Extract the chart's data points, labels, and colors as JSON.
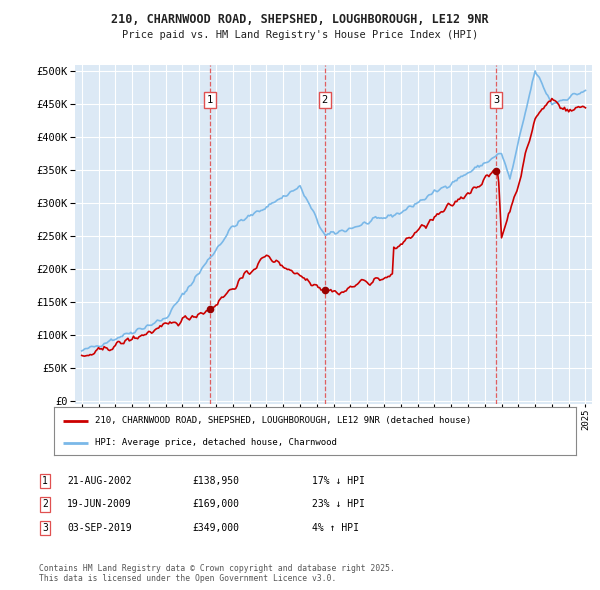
{
  "title1": "210, CHARNWOOD ROAD, SHEPSHED, LOUGHBOROUGH, LE12 9NR",
  "title2": "Price paid vs. HM Land Registry's House Price Index (HPI)",
  "ytick_values": [
    0,
    50000,
    100000,
    150000,
    200000,
    250000,
    300000,
    350000,
    400000,
    450000,
    500000
  ],
  "xlim": [
    1994.6,
    2025.4
  ],
  "ylim": [
    -5000,
    510000
  ],
  "background_color": "#dce9f5",
  "grid_color": "#ffffff",
  "sale_points": [
    {
      "year": 2002.638,
      "price": 138950,
      "label": "1"
    },
    {
      "year": 2009.466,
      "price": 169000,
      "label": "2"
    },
    {
      "year": 2019.672,
      "price": 349000,
      "label": "3"
    }
  ],
  "vline_color": "#e05050",
  "sale_marker_color": "#990000",
  "hpi_line_color": "#7ab8e8",
  "price_line_color": "#cc0000",
  "legend_sale": "210, CHARNWOOD ROAD, SHEPSHED, LOUGHBOROUGH, LE12 9NR (detached house)",
  "legend_hpi": "HPI: Average price, detached house, Charnwood",
  "table_entries": [
    {
      "num": "1",
      "date": "21-AUG-2002",
      "price": "£138,950",
      "pct": "17% ↓ HPI"
    },
    {
      "num": "2",
      "date": "19-JUN-2009",
      "price": "£169,000",
      "pct": "23% ↓ HPI"
    },
    {
      "num": "3",
      "date": "03-SEP-2019",
      "price": "£349,000",
      "pct": "4% ↑ HPI"
    }
  ],
  "footnote": "Contains HM Land Registry data © Crown copyright and database right 2025.\nThis data is licensed under the Open Government Licence v3.0."
}
